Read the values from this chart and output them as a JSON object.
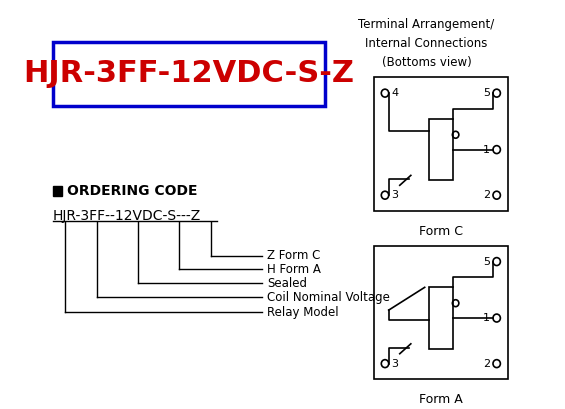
{
  "bg_color": "#ffffff",
  "title_text": "HJR-3FF-12VDC-S-Z",
  "title_color": "#cc0000",
  "title_box_color": "#0000cc",
  "ordering_header": "ORDERING CODE",
  "ordering_code": "HJR-3FF--12VDC-S---Z",
  "top_right_label": "Terminal Arrangement/\nInternal Connections\n(Bottoms view)",
  "form_c_label": "Form C",
  "form_a_label": "Form A",
  "legend_lines": [
    "Z Form C",
    "H Form A",
    "Sealed",
    "Coil Nominal Voltage",
    "Relay Model"
  ]
}
